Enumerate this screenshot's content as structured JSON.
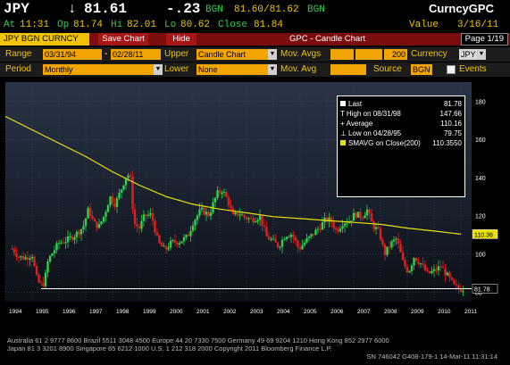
{
  "header": {
    "ticker": "JPY",
    "arrow": "↓",
    "last": "81.61",
    "change": "-.23",
    "source": "BGN",
    "bid_ask": "81.60/81.62",
    "source2": "BGN",
    "currency_label": "CurncyGPC",
    "at_label": "At",
    "at_time": "11:31",
    "op_label": "Op",
    "op_val": "81.74",
    "hi_label": "Hi",
    "hi_val": "82.01",
    "lo_label": "Lo",
    "lo_val": "80.62",
    "close_label": "Close",
    "close_val": "81.84",
    "value_label": "Value",
    "value_date": "3/16/11"
  },
  "menu": {
    "security": "JPY BGN CURNCY",
    "save_chart": "Save Chart",
    "hide": "Hide",
    "title": "GPC - Candle Chart",
    "page": "Page 1/19"
  },
  "form": {
    "range_label": "Range",
    "range_start": "03/31/94",
    "range_dash": "-",
    "range_end": "02/28/11",
    "upper_label": "Upper",
    "upper_value": "Candle Chart",
    "mov_avgs_label": "Mov. Avgs",
    "mov_avgs_value": "200",
    "currency_label": "Currency",
    "currency_value": "JPY",
    "period_label": "Period",
    "period_value": "Monthly",
    "lower_label": "Lower",
    "lower_value": "None",
    "mov_avg_label": "Mov. Avg",
    "source_label": "Source",
    "source_value": "BGN",
    "events_label": "Events"
  },
  "legend": {
    "last_label": "Last",
    "last_value": "81.78",
    "high_label": "High on 08/31/98",
    "high_value": "147.66",
    "avg_label": "Average",
    "avg_value": "110.16",
    "low_label": "Low on 04/28/95",
    "low_value": "79.75",
    "smavg_label": "SMAVG on Close(200)",
    "smavg_value": "110.3550"
  },
  "colors": {
    "up": "#2fd04a",
    "down": "#e0201c",
    "smavg": "#e8e000",
    "accent": "#f2c400",
    "menubar": "#7b0d0d"
  },
  "chart_data": {
    "type": "candlestick",
    "title": "GPC - Candle Chart",
    "ylim": [
      75,
      190
    ],
    "y_ticks": [
      80,
      100,
      120,
      140,
      160,
      180
    ],
    "x_ticks": [
      "1994",
      "1995",
      "1996",
      "1997",
      "1998",
      "1999",
      "2000",
      "2001",
      "2002",
      "2003",
      "2004",
      "2005",
      "2006",
      "2007",
      "2008",
      "2009",
      "2010",
      "2011"
    ],
    "last_line": 81.78,
    "last_tag": "81.78",
    "smavg_tag": "110.36",
    "close_series": [
      {
        "t": 1994.25,
        "v": 102.8
      },
      {
        "t": 1994.5,
        "v": 98.5
      },
      {
        "t": 1994.75,
        "v": 98.0
      },
      {
        "t": 1995.0,
        "v": 99.5
      },
      {
        "t": 1995.15,
        "v": 88.0
      },
      {
        "t": 1995.3,
        "v": 83.5
      },
      {
        "t": 1995.45,
        "v": 84.8
      },
      {
        "t": 1995.6,
        "v": 97.0
      },
      {
        "t": 1995.8,
        "v": 101.5
      },
      {
        "t": 1996.0,
        "v": 105.8
      },
      {
        "t": 1996.3,
        "v": 107.2
      },
      {
        "t": 1996.6,
        "v": 110.0
      },
      {
        "t": 1996.9,
        "v": 114.0
      },
      {
        "t": 1997.1,
        "v": 123.5
      },
      {
        "t": 1997.3,
        "v": 116.0
      },
      {
        "t": 1997.5,
        "v": 114.5
      },
      {
        "t": 1997.7,
        "v": 120.5
      },
      {
        "t": 1997.9,
        "v": 130.0
      },
      {
        "t": 1998.1,
        "v": 126.0
      },
      {
        "t": 1998.3,
        "v": 133.0
      },
      {
        "t": 1998.5,
        "v": 140.5
      },
      {
        "t": 1998.65,
        "v": 142.0
      },
      {
        "t": 1998.8,
        "v": 116.0
      },
      {
        "t": 1999.0,
        "v": 113.5
      },
      {
        "t": 1999.2,
        "v": 120.0
      },
      {
        "t": 1999.45,
        "v": 120.5
      },
      {
        "t": 1999.7,
        "v": 106.0
      },
      {
        "t": 1999.95,
        "v": 102.0
      },
      {
        "t": 2000.2,
        "v": 106.0
      },
      {
        "t": 2000.5,
        "v": 106.5
      },
      {
        "t": 2000.8,
        "v": 109.0
      },
      {
        "t": 2001.0,
        "v": 116.5
      },
      {
        "t": 2001.3,
        "v": 123.0
      },
      {
        "t": 2001.6,
        "v": 120.5
      },
      {
        "t": 2001.9,
        "v": 131.5
      },
      {
        "t": 2002.1,
        "v": 133.5
      },
      {
        "t": 2002.3,
        "v": 128.0
      },
      {
        "t": 2002.5,
        "v": 119.5
      },
      {
        "t": 2002.7,
        "v": 121.5
      },
      {
        "t": 2002.95,
        "v": 119.0
      },
      {
        "t": 2003.2,
        "v": 118.0
      },
      {
        "t": 2003.5,
        "v": 119.5
      },
      {
        "t": 2003.75,
        "v": 109.0
      },
      {
        "t": 2003.95,
        "v": 107.0
      },
      {
        "t": 2004.2,
        "v": 104.0
      },
      {
        "t": 2004.45,
        "v": 110.0
      },
      {
        "t": 2004.7,
        "v": 110.5
      },
      {
        "t": 2004.95,
        "v": 102.5
      },
      {
        "t": 2005.2,
        "v": 106.5
      },
      {
        "t": 2005.45,
        "v": 110.0
      },
      {
        "t": 2005.7,
        "v": 113.5
      },
      {
        "t": 2005.95,
        "v": 118.0
      },
      {
        "t": 2006.15,
        "v": 117.5
      },
      {
        "t": 2006.35,
        "v": 112.0
      },
      {
        "t": 2006.6,
        "v": 116.5
      },
      {
        "t": 2006.85,
        "v": 117.5
      },
      {
        "t": 2007.05,
        "v": 121.0
      },
      {
        "t": 2007.3,
        "v": 119.5
      },
      {
        "t": 2007.5,
        "v": 123.0
      },
      {
        "t": 2007.7,
        "v": 115.0
      },
      {
        "t": 2007.95,
        "v": 111.5
      },
      {
        "t": 2008.15,
        "v": 100.0
      },
      {
        "t": 2008.4,
        "v": 105.5
      },
      {
        "t": 2008.6,
        "v": 108.0
      },
      {
        "t": 2008.85,
        "v": 95.0
      },
      {
        "t": 2009.05,
        "v": 90.5
      },
      {
        "t": 2009.25,
        "v": 98.5
      },
      {
        "t": 2009.5,
        "v": 95.0
      },
      {
        "t": 2009.75,
        "v": 89.5
      },
      {
        "t": 2010.0,
        "v": 91.0
      },
      {
        "t": 2010.25,
        "v": 93.5
      },
      {
        "t": 2010.5,
        "v": 88.5
      },
      {
        "t": 2010.75,
        "v": 83.0
      },
      {
        "t": 2010.95,
        "v": 81.5
      },
      {
        "t": 2011.1,
        "v": 81.78
      }
    ],
    "smavg_series": [
      {
        "t": 1994.0,
        "v": 172
      },
      {
        "t": 1995.0,
        "v": 165
      },
      {
        "t": 1996.0,
        "v": 158
      },
      {
        "t": 1997.0,
        "v": 151
      },
      {
        "t": 1998.0,
        "v": 143
      },
      {
        "t": 1999.0,
        "v": 136
      },
      {
        "t": 2000.0,
        "v": 130
      },
      {
        "t": 2001.0,
        "v": 126
      },
      {
        "t": 2002.0,
        "v": 123.5
      },
      {
        "t": 2003.0,
        "v": 121.5
      },
      {
        "t": 2004.0,
        "v": 119.5
      },
      {
        "t": 2005.0,
        "v": 118.5
      },
      {
        "t": 2006.0,
        "v": 117.5
      },
      {
        "t": 2007.0,
        "v": 116.5
      },
      {
        "t": 2008.0,
        "v": 115.5
      },
      {
        "t": 2009.0,
        "v": 113.5
      },
      {
        "t": 2010.0,
        "v": 112.0
      },
      {
        "t": 2011.0,
        "v": 110.36
      }
    ]
  },
  "footer": {
    "line1": "Australia 61 2 9777 8600 Brazil 5511 3048 4500 Europe 44 20 7330 7500 Germany 49 69 9204 1210 Hong Kong 852 2977 6000",
    "line2": "Japan 81 3 3201 8900          Singapore 65 6212 1000       U.S. 1 212 318 2000       Copyright 2011 Bloomberg Finance L.P.",
    "line3": "SN 746042 G408-179-1 14-Mar-11 11:31:14"
  }
}
